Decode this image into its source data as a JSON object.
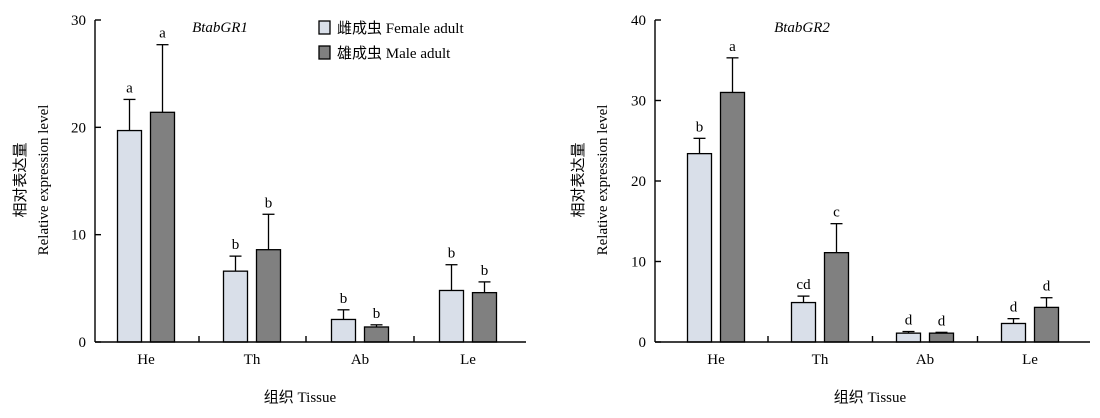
{
  "colors": {
    "female": "#d9dfe9",
    "male": "#808080"
  },
  "legend": {
    "female": "雌成虫 Female adult",
    "male": "雄成虫 Male adult"
  },
  "chart_data": [
    {
      "type": "bar",
      "title": "BtabGR1",
      "ylabel_cn": "相对表达量",
      "ylabel": "Relative expression level",
      "xlabel": "组织 Tissue",
      "categories": [
        "He",
        "Th",
        "Ab",
        "Le"
      ],
      "ylim": [
        0,
        30
      ],
      "yticks": [
        0,
        10,
        20,
        30
      ],
      "series": [
        {
          "name": "雌成虫 Female adult",
          "values": [
            19.7,
            6.6,
            2.1,
            4.8
          ],
          "errors": [
            2.9,
            1.4,
            0.9,
            2.4
          ],
          "letters": [
            "a",
            "b",
            "b",
            "b"
          ]
        },
        {
          "name": "雄成虫 Male adult",
          "values": [
            21.4,
            8.6,
            1.4,
            4.6
          ],
          "errors": [
            6.3,
            3.3,
            0.2,
            1.0
          ],
          "letters": [
            "a",
            "b",
            "b",
            "b"
          ]
        }
      ]
    },
    {
      "type": "bar",
      "title": "BtabGR2",
      "ylabel_cn": "相对表达量",
      "ylabel": "Relative expression level",
      "xlabel": "组织 Tissue",
      "categories": [
        "He",
        "Th",
        "Ab",
        "Le"
      ],
      "ylim": [
        0,
        40
      ],
      "yticks": [
        0,
        10,
        20,
        30,
        40
      ],
      "series": [
        {
          "name": "雌成虫 Female adult",
          "values": [
            23.4,
            4.9,
            1.1,
            2.3
          ],
          "errors": [
            1.9,
            0.8,
            0.2,
            0.6
          ],
          "letters": [
            "b",
            "cd",
            "d",
            "d"
          ]
        },
        {
          "name": "雄成虫 Male adult",
          "values": [
            31.0,
            11.1,
            1.1,
            4.3
          ],
          "errors": [
            4.3,
            3.6,
            0.1,
            1.2
          ],
          "letters": [
            "a",
            "c",
            "d",
            "d"
          ]
        }
      ]
    }
  ]
}
